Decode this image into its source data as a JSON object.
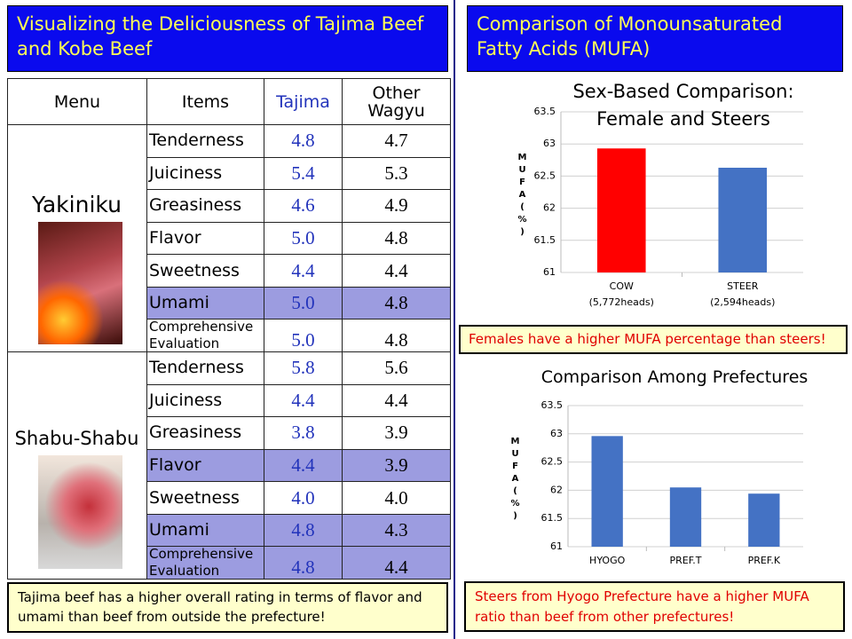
{
  "left": {
    "title": "Visualizing the Deliciousness of Tajima Beef and Kobe Beef",
    "table": {
      "header": [
        "Menu",
        "Items",
        "Tajima",
        "Other Wagyu"
      ],
      "groups": [
        {
          "menu": "Yakiniku",
          "rows": [
            {
              "item": "Tenderness",
              "tajima": "4.8",
              "other": "4.7",
              "highlight": false
            },
            {
              "item": "Juiciness",
              "tajima": "5.4",
              "other": "5.3",
              "highlight": false
            },
            {
              "item": "Greasiness",
              "tajima": "4.6",
              "other": "4.9",
              "highlight": false
            },
            {
              "item": "Flavor",
              "tajima": "5.0",
              "other": "4.8",
              "highlight": false
            },
            {
              "item": "Sweetness",
              "tajima": "4.4",
              "other": "4.4",
              "highlight": false
            },
            {
              "item": "Umami",
              "tajima": "5.0",
              "other": "4.8",
              "highlight": true
            },
            {
              "item": "Comprehensive Evaluation",
              "tajima": "5.0",
              "other": "4.8",
              "highlight": false
            }
          ]
        },
        {
          "menu": "Shabu-Shabu",
          "rows": [
            {
              "item": "Tenderness",
              "tajima": "5.8",
              "other": "5.6",
              "highlight": false
            },
            {
              "item": "Juiciness",
              "tajima": "4.4",
              "other": "4.4",
              "highlight": false
            },
            {
              "item": "Greasiness",
              "tajima": "3.8",
              "other": "3.9",
              "highlight": false
            },
            {
              "item": "Flavor",
              "tajima": "4.4",
              "other": "3.9",
              "highlight": true
            },
            {
              "item": "Sweetness",
              "tajima": "4.0",
              "other": "4.0",
              "highlight": false
            },
            {
              "item": "Umami",
              "tajima": "4.8",
              "other": "4.3",
              "highlight": true
            },
            {
              "item": "Comprehensive Evaluation",
              "tajima": "4.8",
              "other": "4.4",
              "highlight": true
            }
          ]
        }
      ]
    },
    "note": "Tajima beef has a higher overall rating in terms of flavor and umami than beef from outside the prefecture!"
  },
  "right": {
    "title": "Comparison of Monounsaturated Fatty Acids (MUFA)"
  },
  "chart_data": [
    {
      "type": "bar",
      "title": "Sex-Based Comparison: Female and Steers",
      "ylabel": "MUFA(%)",
      "categories": [
        "COW",
        "STEER"
      ],
      "category_notes": [
        "(5,772heads)",
        "(2,594heads)"
      ],
      "values": [
        62.93,
        62.63
      ],
      "colors": [
        "#ff0000",
        "#4472c4"
      ],
      "ylim": [
        61,
        63.5
      ],
      "yticks": [
        61,
        61.5,
        62,
        62.5,
        63,
        63.5
      ],
      "grid": true,
      "annotation": "Females have a higher MUFA percentage than steers!"
    },
    {
      "type": "bar",
      "title": "Comparison Among Prefectures",
      "ylabel": "MUFA(%)",
      "categories": [
        "HYOGO",
        "PREF.T",
        "PREF.K"
      ],
      "values": [
        62.96,
        62.05,
        61.94
      ],
      "colors": [
        "#4472c4",
        "#4472c4",
        "#4472c4"
      ],
      "ylim": [
        61,
        63.5
      ],
      "yticks": [
        61,
        61.5,
        62,
        62.5,
        63,
        63.5
      ],
      "grid": true,
      "annotation": "Steers from Hyogo Prefecture have a higher MUFA ratio than beef from other prefectures!"
    }
  ]
}
